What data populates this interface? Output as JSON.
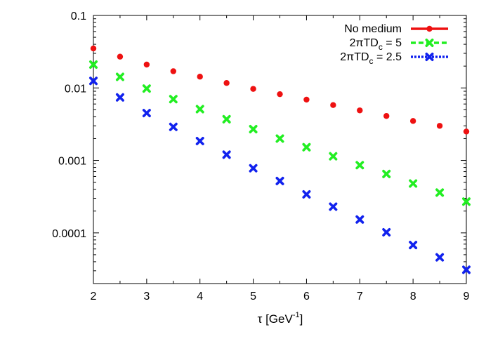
{
  "chart_data": {
    "type": "scatter",
    "xlabel": "τ [GeV",
    "xlabel_sup": "-1",
    "xlabel_suffix": "]",
    "ylabel": "",
    "title": "",
    "xlim": [
      2,
      9
    ],
    "ylim": [
      2e-05,
      0.1
    ],
    "yscale": "log",
    "x_ticks": [
      2,
      3,
      4,
      5,
      6,
      7,
      8,
      9
    ],
    "y_ticks": [
      {
        "value": 0.1,
        "label": "0.1"
      },
      {
        "value": 0.01,
        "label": "0.01"
      },
      {
        "value": 0.001,
        "label": "0.001"
      },
      {
        "value": 0.0001,
        "label": "0.0001"
      }
    ],
    "grid": false,
    "legend_position": "top-right",
    "x": [
      2,
      2.5,
      3,
      3.5,
      4,
      4.5,
      5,
      5.5,
      6,
      6.5,
      7,
      7.5,
      8,
      8.5,
      9
    ],
    "series": [
      {
        "name": "No medium",
        "legend_main": "No medium",
        "legend_sub": "",
        "legend_tail": "",
        "color": "#ee1111",
        "marker": "circle",
        "line": "solid",
        "values": [
          0.035,
          0.027,
          0.021,
          0.017,
          0.0143,
          0.0117,
          0.0097,
          0.0082,
          0.0069,
          0.0058,
          0.0049,
          0.0041,
          0.0035,
          0.003,
          0.0025
        ]
      },
      {
        "name": "2πTDc = 5",
        "legend_main": "2πTD",
        "legend_sub": "c",
        "legend_tail": " = 5",
        "color": "#22ee22",
        "marker": "x",
        "line": "dashed",
        "values": [
          0.021,
          0.0142,
          0.0098,
          0.007,
          0.0051,
          0.0037,
          0.0027,
          0.002,
          0.00152,
          0.00114,
          0.00086,
          0.00065,
          0.00048,
          0.00036,
          0.00027
        ]
      },
      {
        "name": "2πTDc = 2.5",
        "legend_main": "2πTD",
        "legend_sub": "c",
        "legend_tail": " = 2.5",
        "color": "#1122ee",
        "marker": "x",
        "line": "dotted",
        "values": [
          0.0125,
          0.0074,
          0.0045,
          0.0029,
          0.00185,
          0.0012,
          0.00078,
          0.00052,
          0.00034,
          0.00023,
          0.000153,
          0.000102,
          6.8e-05,
          4.6e-05,
          3.1e-05
        ]
      }
    ]
  }
}
